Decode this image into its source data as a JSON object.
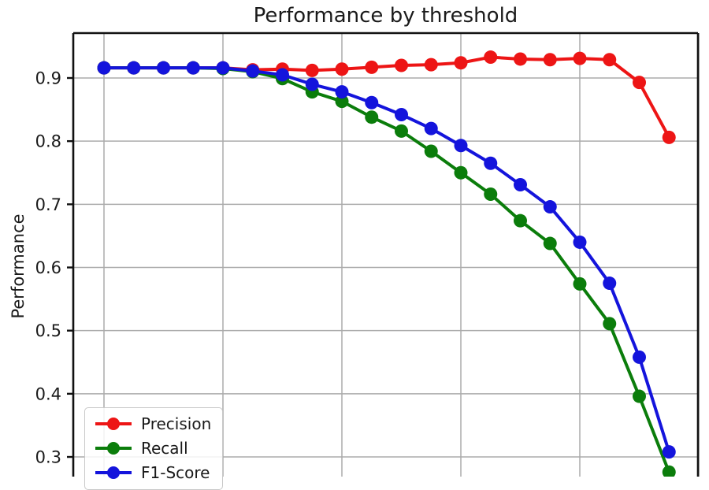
{
  "title": "Performance by threshold",
  "axes": {
    "ylabel": "Performance",
    "xlabel_visible": false,
    "y_tick_labels": [
      "0.9",
      "0.8",
      "0.7",
      "0.6",
      "0.5",
      "0.4",
      "0.3"
    ],
    "grid_color": "#ababab",
    "spine_color": "#111111",
    "text_color": "#1a1a1a"
  },
  "legend": {
    "position": "lower left",
    "items": [
      "Precision",
      "Recall",
      "F1-Score"
    ]
  },
  "chart_data": {
    "type": "line",
    "title": "Performance by threshold",
    "xlabel": "",
    "ylabel": "Performance",
    "grid": true,
    "legend_position": "lower left",
    "x": [
      0.0,
      0.05,
      0.1,
      0.15,
      0.2,
      0.25,
      0.3,
      0.35,
      0.4,
      0.45,
      0.5,
      0.55,
      0.6,
      0.65,
      0.7,
      0.75,
      0.8,
      0.85,
      0.9,
      0.95
    ],
    "x_gridlines": [
      0.0,
      0.2,
      0.4,
      0.6,
      0.8,
      1.0
    ],
    "xlim": [
      -0.052,
      1.0
    ],
    "y_ticks": [
      0.9,
      0.8,
      0.7,
      0.6,
      0.5,
      0.4,
      0.3
    ],
    "ylim_visible": [
      0.269,
      0.971
    ],
    "series": [
      {
        "name": "Precision",
        "color": "#ed1515",
        "values": [
          0.916,
          0.916,
          0.916,
          0.916,
          0.916,
          0.913,
          0.914,
          0.912,
          0.914,
          0.917,
          0.92,
          0.921,
          0.924,
          0.933,
          0.93,
          0.929,
          0.931,
          0.929,
          0.893,
          0.806
        ]
      },
      {
        "name": "Recall",
        "color": "#0b7d0b",
        "values": [
          0.916,
          0.916,
          0.916,
          0.916,
          0.915,
          0.91,
          0.899,
          0.878,
          0.863,
          0.838,
          0.816,
          0.784,
          0.75,
          0.716,
          0.674,
          0.638,
          0.574,
          0.511,
          0.396,
          0.276
        ]
      },
      {
        "name": "F1-Score",
        "color": "#1414dc",
        "values": [
          0.916,
          0.916,
          0.916,
          0.916,
          0.916,
          0.911,
          0.905,
          0.89,
          0.878,
          0.861,
          0.842,
          0.82,
          0.793,
          0.765,
          0.731,
          0.696,
          0.64,
          0.575,
          0.458,
          0.308
        ]
      }
    ]
  }
}
